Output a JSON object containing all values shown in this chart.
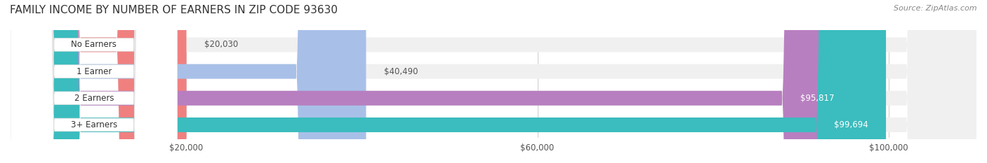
{
  "title": "FAMILY INCOME BY NUMBER OF EARNERS IN ZIP CODE 93630",
  "source": "Source: ZipAtlas.com",
  "categories": [
    "No Earners",
    "1 Earner",
    "2 Earners",
    "3+ Earners"
  ],
  "values": [
    20030,
    40490,
    95817,
    99694
  ],
  "bar_colors": [
    "#f08080",
    "#a8c0e8",
    "#b87fc0",
    "#3bbcbe"
  ],
  "label_colors": [
    "#c0605a",
    "#6090c8",
    "#9060a8",
    "#209090"
  ],
  "value_labels": [
    "$20,030",
    "$40,490",
    "$95,817",
    "$99,694"
  ],
  "bar_bg_color": "#f0f0f0",
  "x_max": 110000,
  "x_ticks": [
    20000,
    60000,
    100000
  ],
  "x_tick_labels": [
    "$20,000",
    "$60,000",
    "$100,000"
  ],
  "title_fontsize": 11,
  "bar_height": 0.55,
  "figsize": [
    14.06,
    2.33
  ],
  "dpi": 100
}
